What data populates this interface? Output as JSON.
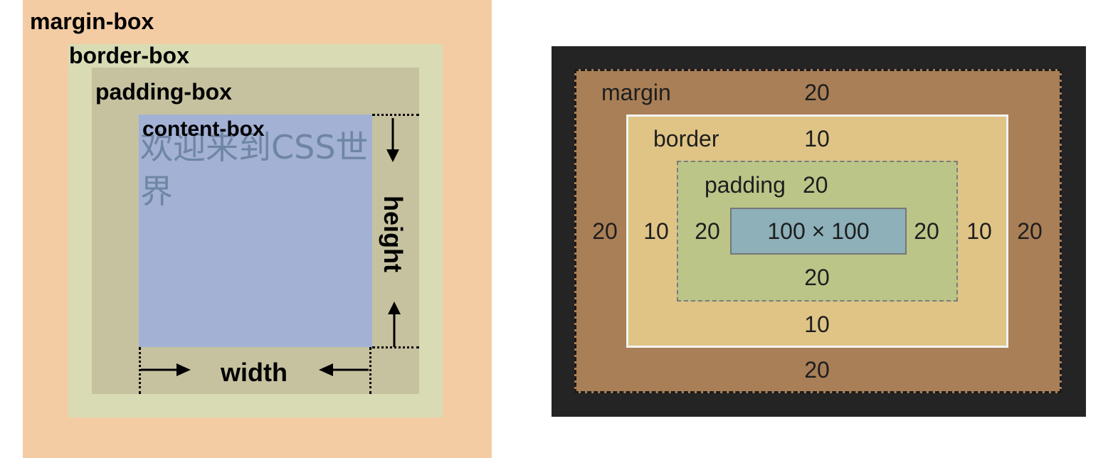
{
  "css_box_model": {
    "labels": {
      "margin_box": "margin-box",
      "border_box": "border-box",
      "padding_box": "padding-box",
      "content_box": "content-box"
    },
    "content_text": "欢迎来到CSS世界",
    "dimensions": {
      "width": "width",
      "height": "height"
    },
    "colors": {
      "margin": "#f3cca4",
      "border": "#d9dbb5",
      "padding": "#c6c2a0",
      "content": "#a3b1d5"
    }
  },
  "devtools_box_model": {
    "margin": {
      "label": "margin",
      "top": "20",
      "right": "20",
      "bottom": "20",
      "left": "20"
    },
    "border": {
      "label": "border",
      "top": "10",
      "right": "10",
      "bottom": "10",
      "left": "10"
    },
    "padding": {
      "label": "padding",
      "top": "20",
      "right": "20",
      "bottom": "20",
      "left": "20"
    },
    "content": {
      "size": "100 × 100"
    },
    "colors": {
      "panel_bg": "#242424",
      "margin": "#a97f57",
      "border": "#dfc486",
      "padding": "#bbc588",
      "content": "#8db0b9"
    }
  }
}
